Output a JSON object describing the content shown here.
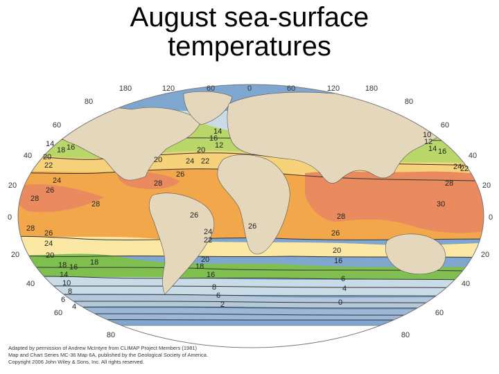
{
  "title_line1": "August sea-surface",
  "title_line2": "temperatures",
  "lon_labels": [
    "180",
    "120",
    "60",
    "0",
    "60",
    "120",
    "180"
  ],
  "lat_labels": {
    "n80": "80",
    "n60": "60",
    "n40": "40",
    "n20": "20",
    "eq": "0",
    "s20": "20",
    "s40": "40",
    "s60": "60",
    "s80": "80"
  },
  "isotherms": [
    "30",
    "28",
    "26",
    "24",
    "22",
    "20",
    "18",
    "16",
    "14",
    "12",
    "10",
    "8",
    "6",
    "4",
    "2",
    "0"
  ],
  "credit": [
    "Adapted by permission of Andrew McIntyre from CLIMAP Project Members (1981)",
    "Map and Chart Series MC-36 Map 6A, published by the Geological Society of America.",
    "Copyright 2006 John Wiley & Sons, Inc. All rights reserved."
  ],
  "colors": {
    "t30": "#e98a5f",
    "t26": "#f2a74a",
    "t22": "#f6d37a",
    "t20": "#fbe8a4",
    "t18": "#b9d66b",
    "t14": "#7fbf4f",
    "t10": "#c9dbe6",
    "t6": "#b4c8dc",
    "t2": "#9db8d6",
    "t0": "#7ea6cf",
    "land": "#e5d7bb",
    "ice": "#ffffff"
  }
}
